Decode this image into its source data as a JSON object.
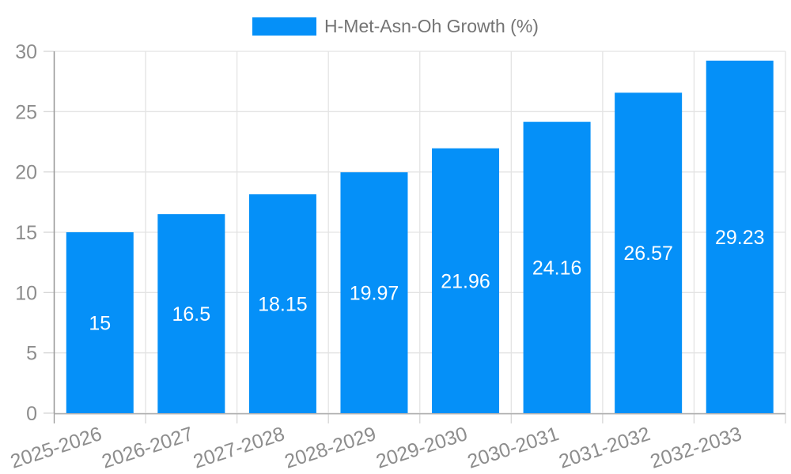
{
  "legend": {
    "label": "H-Met-Asn-Oh Growth (%)",
    "position": "top-center"
  },
  "chart_data": {
    "type": "bar",
    "title": "",
    "xlabel": "",
    "ylabel": "",
    "categories": [
      "2025-2026",
      "2026-2027",
      "2027-2028",
      "2028-2029",
      "2029-2030",
      "2030-2031",
      "2031-2032",
      "2032-2033"
    ],
    "series": [
      {
        "name": "H-Met-Asn-Oh Growth (%)",
        "values": [
          15,
          16.5,
          18.15,
          19.97,
          21.96,
          24.16,
          26.57,
          29.23
        ],
        "value_labels": [
          "15",
          "16.5",
          "18.15",
          "19.97",
          "21.96",
          "24.16",
          "26.57",
          "29.23"
        ],
        "color": "#0590f8"
      }
    ],
    "ylim": [
      0,
      30
    ],
    "yticks": [
      0,
      5,
      10,
      15,
      20,
      25,
      30
    ],
    "grid": true,
    "legend_position": "top-center",
    "x_tick_rotation_deg": -18
  },
  "style": {
    "background": "#ffffff",
    "bar_color": "#0590f8",
    "grid_color": "#e3e3e3",
    "tick_mark_color": "#d6d6d6",
    "y_axis_line_color": "#969696",
    "x_axis_line_color": "#b1b1b1",
    "tick_label_color": "#8d8d8d",
    "legend_text_color": "#747474",
    "value_label_color": "#ffffff"
  }
}
